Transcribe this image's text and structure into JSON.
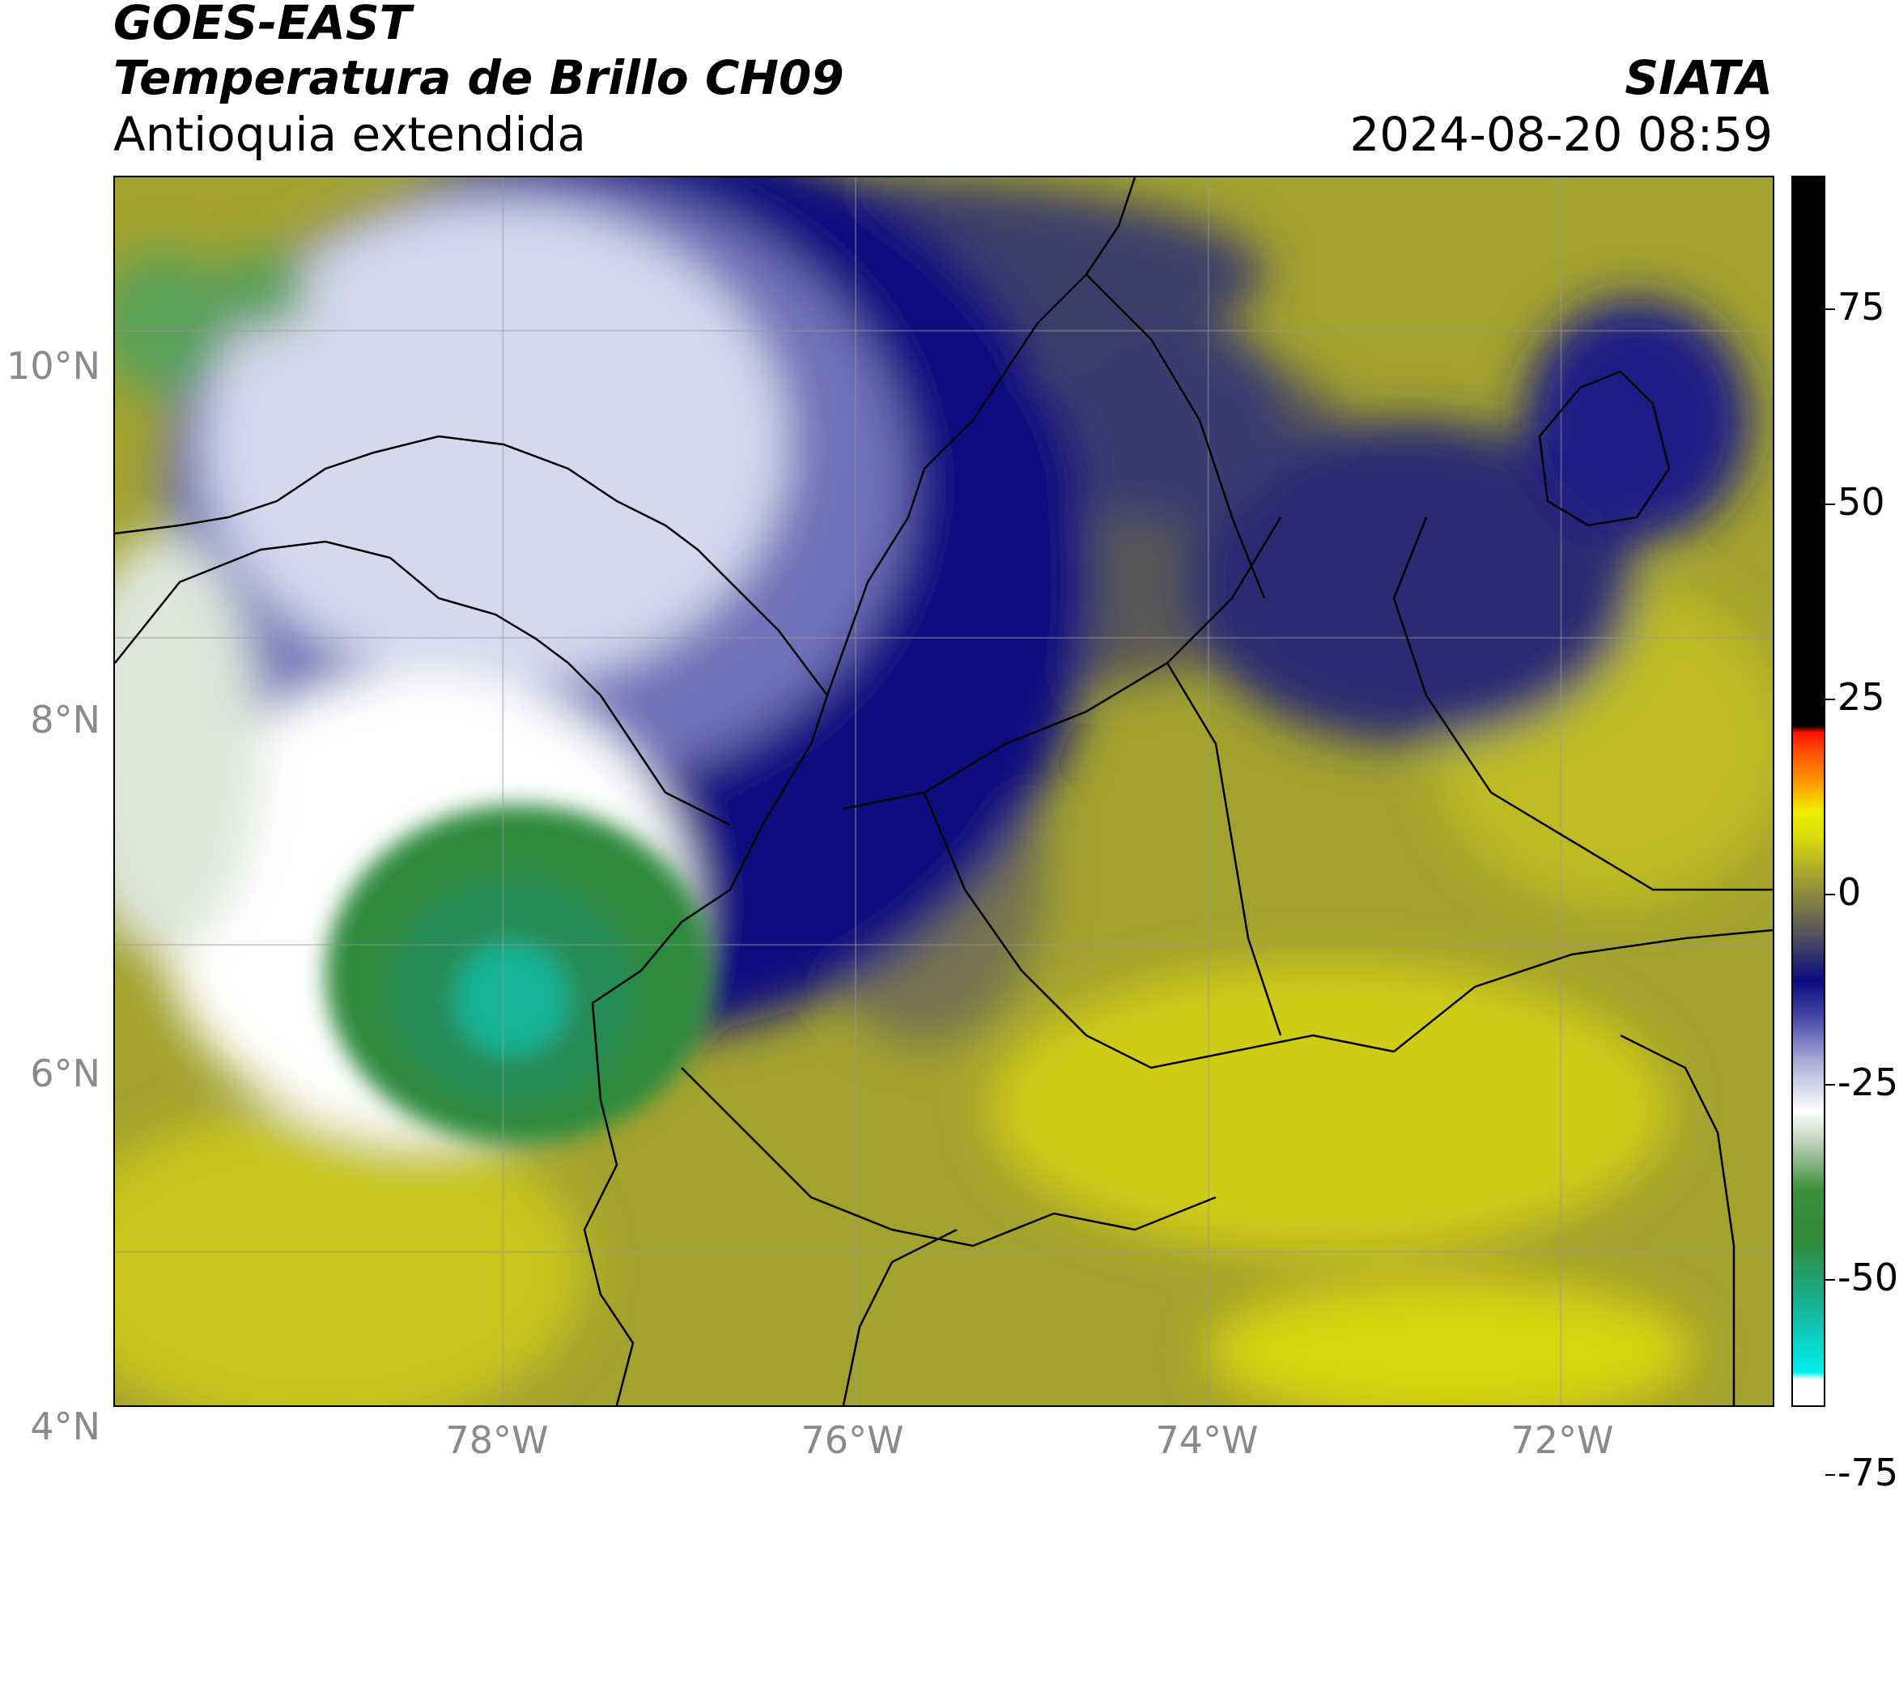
{
  "header": {
    "satellite": "GOES-EAST",
    "product": "Temperatura de Brillo CH09",
    "region": "Antioquia extendida",
    "organization": "SIATA",
    "datetime": "2024-08-20 08:59"
  },
  "map": {
    "lat_range": [
      3.0,
      11.0
    ],
    "lon_range": [
      -80.2,
      -70.8
    ],
    "lat_ticks": [
      {
        "value": 10,
        "label": "10°N"
      },
      {
        "value": 8,
        "label": "8°N"
      },
      {
        "value": 6,
        "label": "6°N"
      },
      {
        "value": 4,
        "label": "4°N"
      }
    ],
    "lon_ticks": [
      {
        "value": -78,
        "label": "78°W"
      },
      {
        "value": -76,
        "label": "76°W"
      },
      {
        "value": -74,
        "label": "74°W"
      },
      {
        "value": -72,
        "label": "72°W"
      }
    ],
    "grid": true
  },
  "colorbar": {
    "range": [
      -95,
      93
    ],
    "ticks": [
      {
        "value": 75,
        "label": "75"
      },
      {
        "value": 50,
        "label": "50"
      },
      {
        "value": 25,
        "label": "25"
      },
      {
        "value": 0,
        "label": "0"
      },
      {
        "value": -25,
        "label": "-25"
      },
      {
        "value": -50,
        "label": "-50"
      },
      {
        "value": -75,
        "label": "-75"
      }
    ],
    "stops": [
      {
        "value": -95,
        "color": "#ffffff"
      },
      {
        "value": -91,
        "color": "#ffffff"
      },
      {
        "value": -90,
        "color": "#00f0f0"
      },
      {
        "value": -80,
        "color": "#16b49a"
      },
      {
        "value": -70,
        "color": "#2e8a3a"
      },
      {
        "value": -62,
        "color": "#3c8f3c"
      },
      {
        "value": -55,
        "color": "#b8d0b4"
      },
      {
        "value": -50,
        "color": "#ffffff"
      },
      {
        "value": -43,
        "color": "#b4b6dc"
      },
      {
        "value": -36,
        "color": "#4a4ea8"
      },
      {
        "value": -30,
        "color": "#0a0a80"
      },
      {
        "value": -25,
        "color": "#3e3e66"
      },
      {
        "value": -20,
        "color": "#706c4e"
      },
      {
        "value": -14,
        "color": "#a6a230"
      },
      {
        "value": -8,
        "color": "#dcdc0c"
      },
      {
        "value": -4,
        "color": "#f0ec00"
      },
      {
        "value": 0,
        "color": "#ffa000"
      },
      {
        "value": 5,
        "color": "#ff5000"
      },
      {
        "value": 8,
        "color": "#ff1000"
      },
      {
        "value": 9,
        "color": "#000000"
      },
      {
        "value": 93,
        "color": "#000000"
      }
    ]
  }
}
